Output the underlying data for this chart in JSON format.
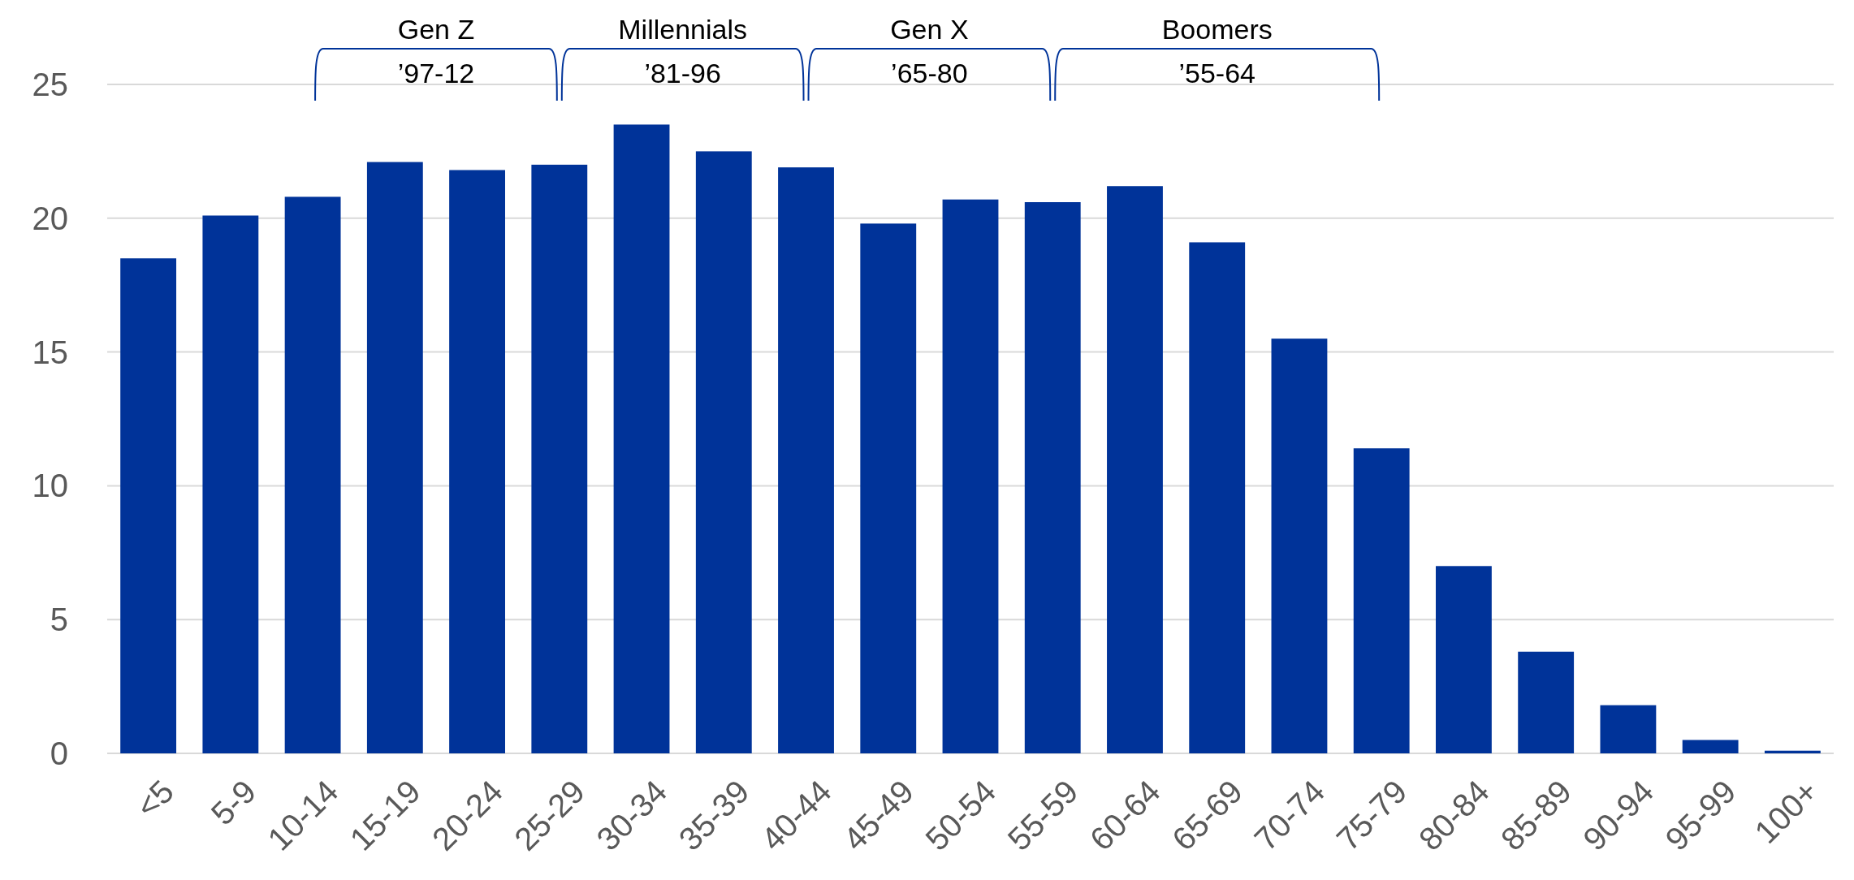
{
  "chart_data": {
    "type": "bar",
    "categories": [
      "<5",
      "5-9",
      "10-14",
      "15-19",
      "20-24",
      "25-29",
      "30-34",
      "35-39",
      "40-44",
      "45-49",
      "50-54",
      "55-59",
      "60-64",
      "65-69",
      "70-74",
      "75-79",
      "80-84",
      "85-89",
      "90-94",
      "95-99",
      "100+"
    ],
    "values": [
      18.5,
      20.1,
      20.8,
      22.1,
      21.8,
      22.0,
      23.5,
      22.5,
      21.9,
      19.8,
      20.7,
      20.6,
      21.2,
      19.1,
      15.5,
      11.4,
      7.0,
      3.8,
      1.8,
      0.5,
      0.1
    ],
    "color": "#003399",
    "ylim": [
      0,
      25
    ],
    "yticks": [
      0,
      5,
      10,
      15,
      20,
      25
    ],
    "grid": "y",
    "annotations": [
      "Gen Z",
      "’97-12",
      "Millennials",
      "’81-96",
      "Gen X",
      "’65-80",
      "Boomers",
      "’55-64"
    ]
  }
}
